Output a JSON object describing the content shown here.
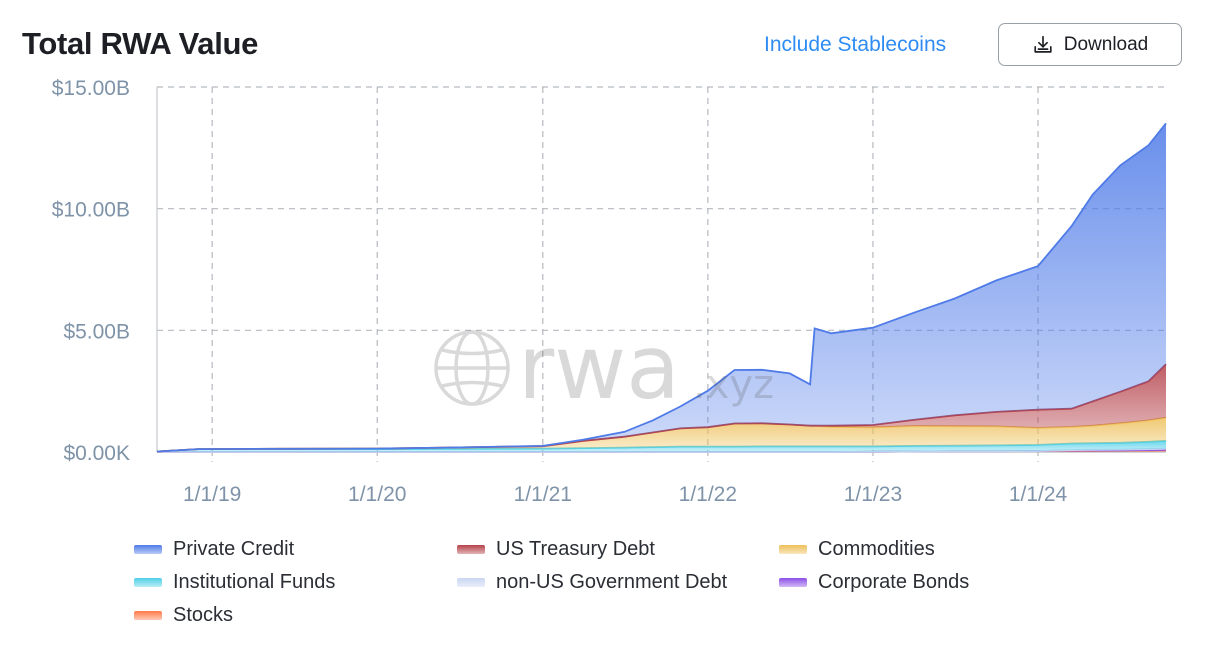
{
  "header": {
    "title": "Total RWA Value",
    "toggle_label": "Include Stablecoins",
    "download_label": "Download",
    "download_icon": "download-icon"
  },
  "watermark": {
    "text": "rwa",
    "suffix": ".xyz",
    "icon": "globe-icon"
  },
  "chart_data": {
    "type": "area",
    "stacked": true,
    "title": "Total RWA Value",
    "xlabel": "",
    "ylabel": "",
    "ylim": [
      0,
      15
    ],
    "y_unit": "USD billions",
    "y_ticks": [
      "$0.00K",
      "$5.00B",
      "$10.00B",
      "$15.00B"
    ],
    "x_ticks": [
      "1/1/19",
      "1/1/20",
      "1/1/21",
      "1/1/22",
      "1/1/23",
      "1/1/24"
    ],
    "xlim": [
      "2018-09-01",
      "2024-10-10"
    ],
    "grid": true,
    "legend_position": "bottom",
    "x": [
      "2018-09-01",
      "2018-12-01",
      "2019-06-01",
      "2020-01-01",
      "2020-06-01",
      "2021-01-01",
      "2021-04-01",
      "2021-07-01",
      "2021-09-01",
      "2021-11-01",
      "2022-01-01",
      "2022-03-01",
      "2022-05-01",
      "2022-07-01",
      "2022-08-15",
      "2022-08-25",
      "2022-10-01",
      "2023-01-01",
      "2023-04-01",
      "2023-07-01",
      "2023-10-01",
      "2024-01-01",
      "2024-03-15",
      "2024-05-01",
      "2024-07-01",
      "2024-09-01",
      "2024-10-10"
    ],
    "series": [
      {
        "name": "Stocks",
        "color": "#ff7a4a",
        "values": [
          0,
          0,
          0,
          0,
          0,
          0,
          0,
          0,
          0,
          0,
          0,
          0,
          0,
          0,
          0,
          0,
          0,
          0.01,
          0.02,
          0.03,
          0.03,
          0.04,
          0.05,
          0.05,
          0.06,
          0.07,
          0.08
        ]
      },
      {
        "name": "Corporate Bonds",
        "color": "#8c4fe8",
        "values": [
          0,
          0,
          0,
          0,
          0,
          0,
          0,
          0,
          0,
          0,
          0,
          0,
          0,
          0,
          0,
          0,
          0,
          0,
          0,
          0,
          0,
          0,
          0.01,
          0.01,
          0.01,
          0.01,
          0.01
        ]
      },
      {
        "name": "non-US Government Debt",
        "color": "#c9d6f2",
        "values": [
          0,
          0,
          0,
          0,
          0,
          0,
          0,
          0,
          0,
          0,
          0,
          0,
          0,
          0,
          0,
          0,
          0,
          0,
          0,
          0,
          0,
          0,
          0.02,
          0.03,
          0.03,
          0.04,
          0.05
        ]
      },
      {
        "name": "Institutional Funds",
        "color": "#4fd0e8",
        "values": [
          0.02,
          0.12,
          0.12,
          0.12,
          0.13,
          0.14,
          0.16,
          0.18,
          0.2,
          0.22,
          0.22,
          0.22,
          0.23,
          0.23,
          0.23,
          0.23,
          0.23,
          0.22,
          0.23,
          0.23,
          0.24,
          0.25,
          0.27,
          0.27,
          0.28,
          0.3,
          0.32
        ]
      },
      {
        "name": "Commodities",
        "color": "#eec05a",
        "values": [
          0,
          0,
          0.01,
          0.02,
          0.05,
          0.1,
          0.3,
          0.45,
          0.6,
          0.75,
          0.8,
          0.95,
          0.95,
          0.9,
          0.85,
          0.85,
          0.8,
          0.78,
          0.82,
          0.8,
          0.78,
          0.7,
          0.68,
          0.72,
          0.8,
          0.88,
          0.95
        ]
      },
      {
        "name": "US Treasury Debt",
        "color": "#b4414a",
        "values": [
          0,
          0,
          0,
          0,
          0,
          0,
          0,
          0,
          0,
          0,
          0,
          0,
          0,
          0,
          0,
          0,
          0.05,
          0.1,
          0.25,
          0.45,
          0.6,
          0.75,
          0.75,
          1.0,
          1.3,
          1.6,
          2.2
        ]
      },
      {
        "name": "Private Credit",
        "color": "#4f7be8",
        "values": [
          0,
          0,
          0,
          0,
          0,
          0.01,
          0.05,
          0.2,
          0.5,
          0.9,
          1.5,
          2.2,
          2.2,
          2.1,
          1.7,
          4.0,
          3.8,
          4.0,
          4.4,
          4.8,
          5.4,
          5.9,
          7.5,
          8.5,
          9.3,
          9.7,
          9.9
        ]
      }
    ]
  },
  "legend": [
    {
      "label": "Private Credit",
      "color": "#4f7be8"
    },
    {
      "label": "US Treasury Debt",
      "color": "#b4414a"
    },
    {
      "label": "Commodities",
      "color": "#eec05a"
    },
    {
      "label": "Institutional Funds",
      "color": "#4fd0e8"
    },
    {
      "label": "non-US Government Debt",
      "color": "#c9d6f2"
    },
    {
      "label": "Corporate Bonds",
      "color": "#8c4fe8"
    },
    {
      "label": "Stocks",
      "color": "#ff7a4a"
    }
  ]
}
